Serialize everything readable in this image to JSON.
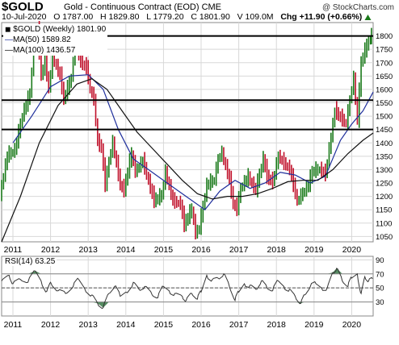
{
  "header": {
    "symbol": "$GOLD",
    "description": "Gold - Continuous Contract (EOD)",
    "exchange": "CME",
    "copyright": "@ StockCharts.com",
    "date": "10-Jul-2020",
    "open": "O 1787.00",
    "high": "H 1829.80",
    "low": "L 1779.20",
    "close": "C 1801.90",
    "volume": "V 109.0M",
    "change": "Chg +11.90 (+0.66%)",
    "change_icon": "up-triangle-icon"
  },
  "legend": {
    "price_label": "$GOLD (Weekly) 1801.90",
    "ma50_label": "MA(50) 1589.82",
    "ma100_label": "MA(100) 1436.57",
    "rsi_label": "RSI(14) 63.25"
  },
  "colors": {
    "up_bar": "#1a7a1a",
    "down_bar": "#c0102a",
    "ma50": "#1f2f9c",
    "ma100": "#111111",
    "rsi_line": "#333333",
    "rsi_fill_over": "#2a6f3a",
    "rsi_fill_under": "#2a6f3a",
    "grid": "#d8d8d8"
  },
  "chart_data": [
    {
      "type": "line",
      "name": "price",
      "x_ticks": [
        "2011",
        "2012",
        "2013",
        "2014",
        "2015",
        "2016",
        "2017",
        "2018",
        "2019",
        "2020"
      ],
      "y_ticks": [
        1050,
        1100,
        1150,
        1200,
        1250,
        1300,
        1350,
        1400,
        1450,
        1500,
        1550,
        1600,
        1650,
        1700,
        1750,
        1800
      ],
      "ylim": [
        1030,
        1850
      ],
      "xlim": [
        2010.7,
        2020.57
      ],
      "horizontal_lines": [
        1800,
        1560,
        1450
      ],
      "series": [
        {
          "name": "$GOLD (Weekly)",
          "points": [
            [
              2010.7,
              1200
            ],
            [
              2010.9,
              1350
            ],
            [
              2011.1,
              1370
            ],
            [
              2011.3,
              1500
            ],
            [
              2011.5,
              1580
            ],
            [
              2011.6,
              1760
            ],
            [
              2011.7,
              1820
            ],
            [
              2011.8,
              1650
            ],
            [
              2011.9,
              1700
            ],
            [
              2012.0,
              1600
            ],
            [
              2012.1,
              1720
            ],
            [
              2012.3,
              1650
            ],
            [
              2012.4,
              1560
            ],
            [
              2012.5,
              1600
            ],
            [
              2012.6,
              1640
            ],
            [
              2012.7,
              1780
            ],
            [
              2012.8,
              1720
            ],
            [
              2012.9,
              1690
            ],
            [
              2013.0,
              1680
            ],
            [
              2013.1,
              1600
            ],
            [
              2013.2,
              1560
            ],
            [
              2013.3,
              1400
            ],
            [
              2013.4,
              1380
            ],
            [
              2013.5,
              1240
            ],
            [
              2013.6,
              1330
            ],
            [
              2013.7,
              1400
            ],
            [
              2013.8,
              1320
            ],
            [
              2013.9,
              1240
            ],
            [
              2014.0,
              1220
            ],
            [
              2014.2,
              1360
            ],
            [
              2014.3,
              1290
            ],
            [
              2014.5,
              1330
            ],
            [
              2014.7,
              1230
            ],
            [
              2014.8,
              1180
            ],
            [
              2015.0,
              1200
            ],
            [
              2015.1,
              1290
            ],
            [
              2015.3,
              1180
            ],
            [
              2015.5,
              1170
            ],
            [
              2015.6,
              1090
            ],
            [
              2015.8,
              1150
            ],
            [
              2015.9,
              1060
            ],
            [
              2016.0,
              1080
            ],
            [
              2016.2,
              1240
            ],
            [
              2016.4,
              1260
            ],
            [
              2016.5,
              1340
            ],
            [
              2016.6,
              1360
            ],
            [
              2016.8,
              1260
            ],
            [
              2016.9,
              1170
            ],
            [
              2017.0,
              1150
            ],
            [
              2017.1,
              1230
            ],
            [
              2017.3,
              1270
            ],
            [
              2017.5,
              1220
            ],
            [
              2017.7,
              1340
            ],
            [
              2017.8,
              1270
            ],
            [
              2017.95,
              1250
            ],
            [
              2018.1,
              1350
            ],
            [
              2018.2,
              1330
            ],
            [
              2018.4,
              1300
            ],
            [
              2018.5,
              1240
            ],
            [
              2018.6,
              1180
            ],
            [
              2018.7,
              1200
            ],
            [
              2018.9,
              1240
            ],
            [
              2019.0,
              1290
            ],
            [
              2019.2,
              1300
            ],
            [
              2019.35,
              1280
            ],
            [
              2019.5,
              1420
            ],
            [
              2019.6,
              1520
            ],
            [
              2019.7,
              1500
            ],
            [
              2019.9,
              1470
            ],
            [
              2020.0,
              1560
            ],
            [
              2020.1,
              1640
            ],
            [
              2020.2,
              1480
            ],
            [
              2020.3,
              1700
            ],
            [
              2020.4,
              1740
            ],
            [
              2020.5,
              1780
            ],
            [
              2020.55,
              1800
            ]
          ]
        },
        {
          "name": "MA(50)",
          "points": [
            [
              2011.0,
              1400
            ],
            [
              2011.5,
              1500
            ],
            [
              2012.0,
              1610
            ],
            [
              2012.5,
              1650
            ],
            [
              2013.0,
              1655
            ],
            [
              2013.4,
              1600
            ],
            [
              2013.8,
              1450
            ],
            [
              2014.2,
              1340
            ],
            [
              2014.6,
              1300
            ],
            [
              2015.0,
              1260
            ],
            [
              2015.4,
              1220
            ],
            [
              2015.8,
              1180
            ],
            [
              2016.1,
              1150
            ],
            [
              2016.5,
              1220
            ],
            [
              2016.9,
              1260
            ],
            [
              2017.3,
              1230
            ],
            [
              2017.7,
              1250
            ],
            [
              2018.1,
              1290
            ],
            [
              2018.5,
              1280
            ],
            [
              2018.9,
              1250
            ],
            [
              2019.3,
              1275
            ],
            [
              2019.7,
              1410
            ],
            [
              2020.0,
              1470
            ],
            [
              2020.3,
              1520
            ],
            [
              2020.57,
              1590
            ]
          ]
        },
        {
          "name": "MA(100)",
          "points": [
            [
              2010.7,
              1030
            ],
            [
              2011.2,
              1200
            ],
            [
              2011.7,
              1400
            ],
            [
              2012.2,
              1540
            ],
            [
              2012.7,
              1620
            ],
            [
              2013.1,
              1640
            ],
            [
              2013.5,
              1600
            ],
            [
              2013.9,
              1520
            ],
            [
              2014.3,
              1440
            ],
            [
              2014.7,
              1380
            ],
            [
              2015.1,
              1320
            ],
            [
              2015.5,
              1260
            ],
            [
              2015.9,
              1210
            ],
            [
              2016.3,
              1190
            ],
            [
              2016.7,
              1200
            ],
            [
              2017.1,
              1200
            ],
            [
              2017.5,
              1210
            ],
            [
              2017.9,
              1230
            ],
            [
              2018.3,
              1255
            ],
            [
              2018.7,
              1260
            ],
            [
              2019.1,
              1260
            ],
            [
              2019.5,
              1300
            ],
            [
              2019.9,
              1360
            ],
            [
              2020.3,
              1410
            ],
            [
              2020.57,
              1437
            ]
          ]
        }
      ]
    },
    {
      "type": "line",
      "name": "RSI(14)",
      "x_ticks": [
        "2011",
        "2012",
        "2013",
        "2014",
        "2015",
        "2016",
        "2017",
        "2018",
        "2019",
        "2020"
      ],
      "y_ticks": [
        30,
        50,
        70,
        90
      ],
      "ylim": [
        10,
        95
      ],
      "xlim": [
        2010.7,
        2020.57
      ],
      "horizontal_lines": [
        70,
        50,
        30
      ],
      "series": [
        {
          "name": "RSI(14)",
          "points": [
            [
              2010.7,
              60
            ],
            [
              2010.9,
              68
            ],
            [
              2011.0,
              56
            ],
            [
              2011.2,
              62
            ],
            [
              2011.4,
              58
            ],
            [
              2011.6,
              74
            ],
            [
              2011.75,
              60
            ],
            [
              2011.9,
              45
            ],
            [
              2012.0,
              58
            ],
            [
              2012.2,
              46
            ],
            [
              2012.4,
              42
            ],
            [
              2012.6,
              52
            ],
            [
              2012.75,
              62
            ],
            [
              2012.9,
              50
            ],
            [
              2013.1,
              40
            ],
            [
              2013.25,
              28
            ],
            [
              2013.4,
              22
            ],
            [
              2013.55,
              42
            ],
            [
              2013.7,
              52
            ],
            [
              2013.85,
              38
            ],
            [
              2014.0,
              44
            ],
            [
              2014.2,
              58
            ],
            [
              2014.35,
              48
            ],
            [
              2014.5,
              52
            ],
            [
              2014.7,
              40
            ],
            [
              2014.85,
              36
            ],
            [
              2015.0,
              52
            ],
            [
              2015.15,
              46
            ],
            [
              2015.3,
              42
            ],
            [
              2015.5,
              38
            ],
            [
              2015.6,
              32
            ],
            [
              2015.75,
              42
            ],
            [
              2015.9,
              34
            ],
            [
              2016.0,
              44
            ],
            [
              2016.15,
              68
            ],
            [
              2016.3,
              62
            ],
            [
              2016.45,
              64
            ],
            [
              2016.6,
              70
            ],
            [
              2016.75,
              52
            ],
            [
              2016.9,
              32
            ],
            [
              2017.0,
              44
            ],
            [
              2017.15,
              56
            ],
            [
              2017.3,
              54
            ],
            [
              2017.45,
              48
            ],
            [
              2017.6,
              60
            ],
            [
              2017.75,
              50
            ],
            [
              2017.9,
              46
            ],
            [
              2018.05,
              60
            ],
            [
              2018.2,
              52
            ],
            [
              2018.35,
              48
            ],
            [
              2018.5,
              38
            ],
            [
              2018.65,
              28
            ],
            [
              2018.75,
              40
            ],
            [
              2018.9,
              52
            ],
            [
              2019.05,
              56
            ],
            [
              2019.2,
              50
            ],
            [
              2019.35,
              50
            ],
            [
              2019.5,
              72
            ],
            [
              2019.6,
              78
            ],
            [
              2019.75,
              60
            ],
            [
              2019.9,
              52
            ],
            [
              2020.0,
              64
            ],
            [
              2020.15,
              70
            ],
            [
              2020.25,
              42
            ],
            [
              2020.35,
              66
            ],
            [
              2020.45,
              60
            ],
            [
              2020.55,
              63
            ]
          ]
        }
      ]
    }
  ]
}
